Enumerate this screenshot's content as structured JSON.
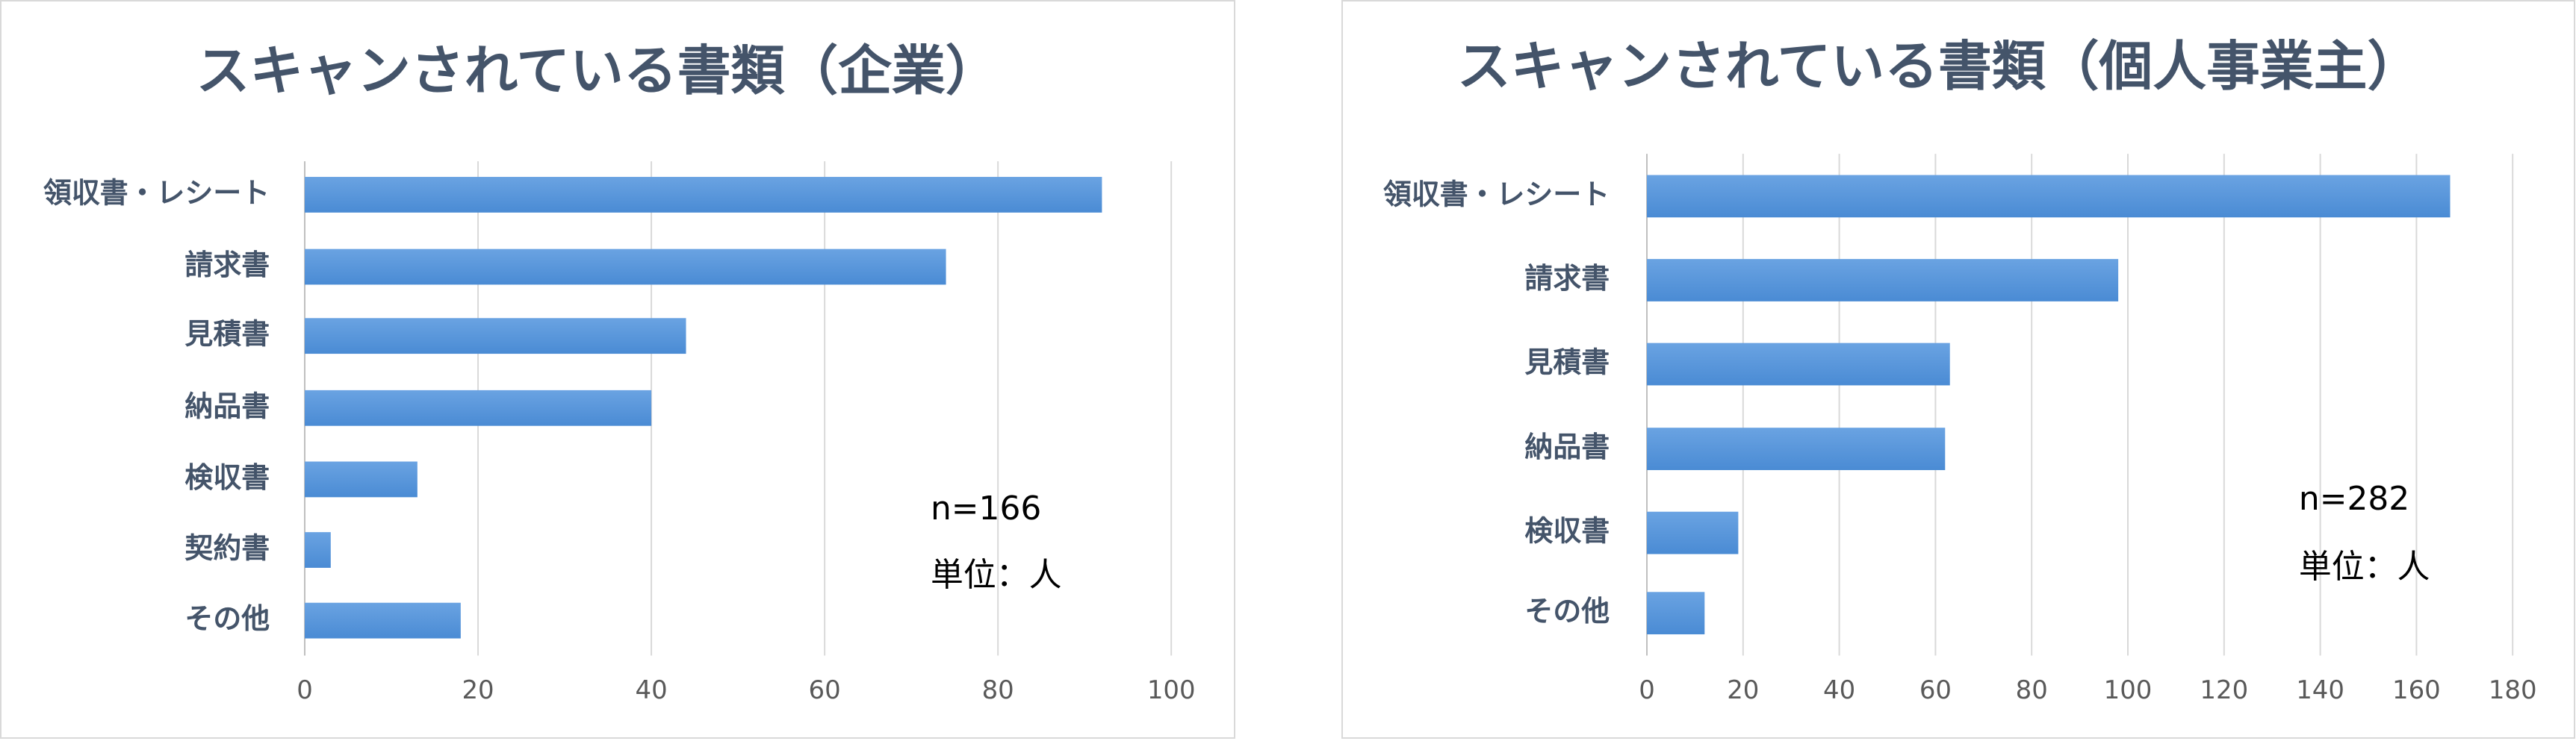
{
  "chart_data": [
    {
      "type": "bar",
      "orientation": "horizontal",
      "title": "スキャンされている書類（企業）",
      "categories": [
        "領収書・レシート",
        "請求書",
        "見積書",
        "納品書",
        "検収書",
        "契約書",
        "その他"
      ],
      "values": [
        92,
        74,
        44,
        40,
        13,
        3,
        18
      ],
      "xlim": [
        0,
        100
      ],
      "ticks": [
        0,
        20,
        40,
        60,
        80,
        100
      ],
      "grid": true,
      "annotations": [
        "n=166",
        "単位：人"
      ],
      "bar_color": "#4a8bd4"
    },
    {
      "type": "bar",
      "orientation": "horizontal",
      "title": "スキャンされている書類（個人事業主）",
      "categories": [
        "領収書・レシート",
        "請求書",
        "見積書",
        "納品書",
        "検収書",
        "その他"
      ],
      "values": [
        167,
        98,
        63,
        62,
        19,
        12
      ],
      "xlim": [
        0,
        180
      ],
      "ticks": [
        0,
        20,
        40,
        60,
        80,
        100,
        120,
        140,
        160,
        180
      ],
      "grid": true,
      "annotations": [
        "n=282",
        "単位：人"
      ],
      "bar_color": "#4a8bd4"
    }
  ]
}
